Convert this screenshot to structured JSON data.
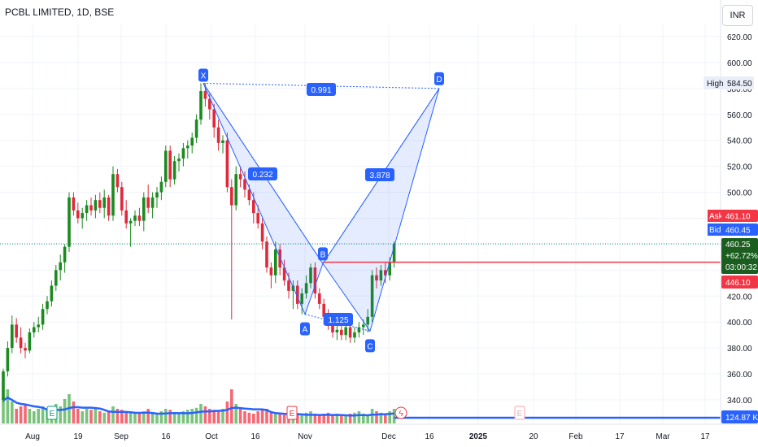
{
  "header": {
    "title": "PCBL LIMITED, 1D, BSE",
    "currency": "INR"
  },
  "chart_data": {
    "type": "candlestick",
    "ylim": [
      330,
      630
    ],
    "y_ticks": [
      "620.00",
      "600.00",
      "580.00",
      "560.00",
      "540.00",
      "520.00",
      "500.00",
      "480.00",
      "460.00",
      "440.00",
      "420.00",
      "400.00",
      "380.00",
      "360.00",
      "340.00"
    ],
    "x_ticks": [
      "Aug",
      "19",
      "Sep",
      "16",
      "Oct",
      "16",
      "Nov",
      "Dec",
      "16",
      "2025",
      "20",
      "Feb",
      "17",
      "Mar",
      "17"
    ],
    "labels": {
      "high_label": "High",
      "high_value": "584.50",
      "ask_label": "Ask",
      "ask_value": "461.10",
      "bid_label": "Bid",
      "bid_value": "460.45",
      "last_price": "460.25",
      "change_pct": "+62.72%",
      "countdown": "03:00:32",
      "ref_price": "446.10",
      "volume_value": "124.87 K"
    },
    "pattern": {
      "points": [
        {
          "name": "X",
          "date": "Sep 30",
          "price": 584
        },
        {
          "name": "A",
          "date": "Nov 4",
          "price": 406
        },
        {
          "name": "B",
          "date": "Nov 8",
          "price": 445
        },
        {
          "name": "C",
          "date": "Nov 29",
          "price": 393
        },
        {
          "name": "D",
          "date": "Dec 11",
          "price": 580
        }
      ],
      "ratios": [
        "0.991",
        "0.232",
        "3.878",
        "1.125"
      ]
    },
    "candles": [
      [
        340,
        364,
        338,
        362
      ],
      [
        362,
        385,
        358,
        380
      ],
      [
        380,
        405,
        376,
        398
      ],
      [
        398,
        403,
        384,
        388
      ],
      [
        388,
        396,
        376,
        380
      ],
      [
        380,
        384,
        372,
        378
      ],
      [
        378,
        395,
        376,
        392
      ],
      [
        392,
        400,
        388,
        396
      ],
      [
        396,
        404,
        392,
        398
      ],
      [
        398,
        414,
        394,
        410
      ],
      [
        410,
        420,
        406,
        416
      ],
      [
        416,
        432,
        412,
        428
      ],
      [
        428,
        444,
        424,
        440
      ],
      [
        440,
        452,
        432,
        446
      ],
      [
        446,
        460,
        438,
        458
      ],
      [
        458,
        500,
        454,
        496
      ],
      [
        496,
        500,
        482,
        486
      ],
      [
        486,
        492,
        476,
        480
      ],
      [
        480,
        488,
        472,
        484
      ],
      [
        484,
        494,
        478,
        490
      ],
      [
        490,
        496,
        482,
        486
      ],
      [
        486,
        498,
        480,
        494
      ],
      [
        494,
        500,
        484,
        488
      ],
      [
        488,
        502,
        480,
        496
      ],
      [
        496,
        498,
        478,
        482
      ],
      [
        482,
        520,
        478,
        514
      ],
      [
        514,
        518,
        500,
        504
      ],
      [
        504,
        508,
        482,
        486
      ],
      [
        486,
        494,
        472,
        476
      ],
      [
        476,
        480,
        458,
        478
      ],
      [
        478,
        486,
        474,
        482
      ],
      [
        482,
        488,
        474,
        478
      ],
      [
        478,
        500,
        470,
        496
      ],
      [
        496,
        506,
        484,
        488
      ],
      [
        488,
        500,
        480,
        496
      ],
      [
        496,
        504,
        488,
        500
      ],
      [
        500,
        512,
        494,
        508
      ],
      [
        508,
        536,
        504,
        532
      ],
      [
        532,
        536,
        504,
        510
      ],
      [
        510,
        528,
        506,
        524
      ],
      [
        524,
        530,
        516,
        526
      ],
      [
        526,
        538,
        520,
        534
      ],
      [
        534,
        540,
        526,
        536
      ],
      [
        536,
        546,
        530,
        542
      ],
      [
        542,
        560,
        538,
        556
      ],
      [
        556,
        584,
        552,
        578
      ],
      [
        578,
        584,
        566,
        572
      ],
      [
        572,
        576,
        556,
        564
      ],
      [
        564,
        568,
        542,
        550
      ],
      [
        550,
        556,
        532,
        538
      ],
      [
        538,
        544,
        530,
        540
      ],
      [
        540,
        546,
        500,
        504
      ],
      [
        504,
        510,
        402,
        490
      ],
      [
        490,
        520,
        486,
        514
      ],
      [
        514,
        520,
        504,
        510
      ],
      [
        510,
        516,
        496,
        502
      ],
      [
        502,
        506,
        490,
        494
      ],
      [
        494,
        500,
        476,
        484
      ],
      [
        484,
        490,
        472,
        476
      ],
      [
        476,
        480,
        456,
        462
      ],
      [
        462,
        466,
        438,
        442
      ],
      [
        442,
        446,
        426,
        436
      ],
      [
        436,
        462,
        430,
        456
      ],
      [
        456,
        460,
        436,
        442
      ],
      [
        442,
        448,
        428,
        432
      ],
      [
        432,
        438,
        418,
        424
      ],
      [
        424,
        432,
        410,
        428
      ],
      [
        428,
        432,
        410,
        414
      ],
      [
        414,
        426,
        406,
        422
      ],
      [
        422,
        436,
        418,
        430
      ],
      [
        430,
        445,
        426,
        442
      ],
      [
        442,
        446,
        418,
        422
      ],
      [
        422,
        426,
        410,
        414
      ],
      [
        414,
        418,
        398,
        404
      ],
      [
        404,
        410,
        394,
        398
      ],
      [
        398,
        402,
        388,
        392
      ],
      [
        392,
        398,
        386,
        394
      ],
      [
        394,
        398,
        386,
        390
      ],
      [
        390,
        400,
        386,
        396
      ],
      [
        396,
        402,
        384,
        388
      ],
      [
        388,
        396,
        384,
        392
      ],
      [
        392,
        400,
        388,
        396
      ],
      [
        396,
        402,
        390,
        398
      ],
      [
        398,
        410,
        392,
        404
      ],
      [
        404,
        440,
        400,
        436
      ],
      [
        436,
        442,
        426,
        432
      ],
      [
        432,
        444,
        428,
        440
      ],
      [
        440,
        446,
        430,
        436
      ],
      [
        436,
        450,
        432,
        446
      ],
      [
        446,
        462,
        442,
        460
      ]
    ],
    "volumes": [
      0.55,
      0.7,
      0.45,
      0.3,
      0.35,
      0.4,
      0.3,
      0.25,
      0.3,
      0.35,
      0.3,
      0.28,
      0.4,
      0.35,
      0.5,
      0.6,
      0.45,
      0.3,
      0.25,
      0.3,
      0.28,
      0.3,
      0.25,
      0.22,
      0.25,
      0.35,
      0.3,
      0.28,
      0.25,
      0.22,
      0.2,
      0.22,
      0.25,
      0.3,
      0.22,
      0.2,
      0.25,
      0.3,
      0.28,
      0.22,
      0.2,
      0.25,
      0.28,
      0.3,
      0.32,
      0.4,
      0.35,
      0.3,
      0.28,
      0.25,
      0.3,
      0.45,
      0.7,
      0.4,
      0.3,
      0.25,
      0.22,
      0.2,
      0.25,
      0.28,
      0.3,
      0.25,
      0.2,
      0.22,
      0.18,
      0.2,
      0.22,
      0.18,
      0.2,
      0.22,
      0.25,
      0.2,
      0.18,
      0.2,
      0.22,
      0.18,
      0.2,
      0.15,
      0.18,
      0.2,
      0.22,
      0.25,
      0.2,
      0.18,
      0.3,
      0.25,
      0.22,
      0.2,
      0.25,
      0.3
    ]
  }
}
